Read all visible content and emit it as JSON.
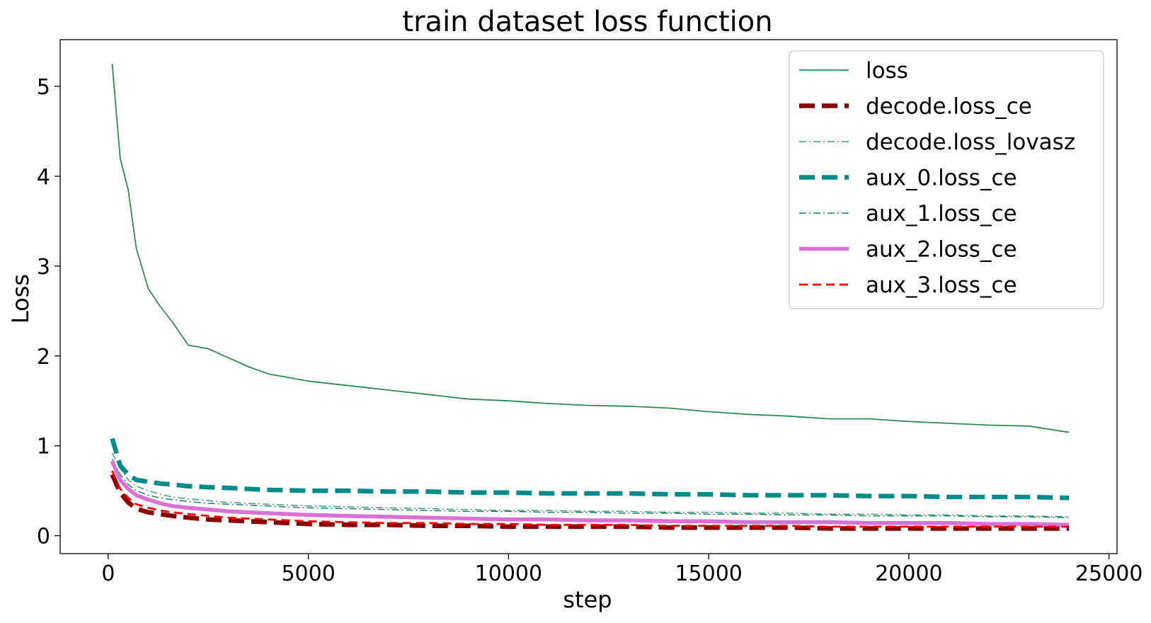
{
  "chart_data": {
    "type": "line",
    "title": "train dataset loss function",
    "xlabel": "step",
    "ylabel": "Loss",
    "xlim": [
      -1200,
      25200
    ],
    "ylim": [
      -0.2,
      5.52
    ],
    "xticks": [
      0,
      5000,
      10000,
      15000,
      20000,
      25000
    ],
    "yticks": [
      0,
      1,
      2,
      3,
      4,
      5
    ],
    "grid": false,
    "legend_position": "top-right",
    "series": [
      {
        "name": "loss",
        "color": "#2e8b57",
        "style": "solid-thin",
        "x": [
          100,
          300,
          500,
          700,
          1000,
          1300,
          1600,
          2000,
          2500,
          3000,
          3500,
          4000,
          5000,
          6000,
          7000,
          8000,
          9000,
          10000,
          11000,
          12000,
          13000,
          14000,
          15000,
          16000,
          17000,
          18000,
          19000,
          20000,
          21000,
          22000,
          23000,
          24000
        ],
        "values": [
          5.25,
          4.2,
          3.85,
          3.2,
          2.75,
          2.55,
          2.38,
          2.12,
          2.08,
          1.98,
          1.88,
          1.8,
          1.72,
          1.67,
          1.62,
          1.57,
          1.52,
          1.5,
          1.47,
          1.45,
          1.44,
          1.42,
          1.38,
          1.35,
          1.33,
          1.3,
          1.3,
          1.27,
          1.25,
          1.23,
          1.22,
          1.15
        ]
      },
      {
        "name": "decode.loss_ce",
        "color": "#8b0000",
        "style": "dashed-thick",
        "x": [
          100,
          300,
          500,
          700,
          1000,
          1300,
          1600,
          2000,
          2500,
          3000,
          3500,
          4000,
          5000,
          6000,
          7000,
          8000,
          9000,
          10000,
          11000,
          12000,
          13000,
          14000,
          15000,
          16000,
          17000,
          18000,
          19000,
          20000,
          21000,
          22000,
          23000,
          24000
        ],
        "values": [
          0.68,
          0.48,
          0.37,
          0.3,
          0.26,
          0.24,
          0.22,
          0.2,
          0.18,
          0.17,
          0.16,
          0.15,
          0.13,
          0.12,
          0.12,
          0.11,
          0.11,
          0.1,
          0.1,
          0.1,
          0.1,
          0.09,
          0.09,
          0.09,
          0.09,
          0.08,
          0.08,
          0.08,
          0.08,
          0.08,
          0.08,
          0.08
        ]
      },
      {
        "name": "decode.loss_lovasz",
        "color": "#3a9e7c",
        "style": "dashdot-thin",
        "x": [
          100,
          300,
          500,
          700,
          1000,
          1300,
          1600,
          2000,
          2500,
          3000,
          3500,
          4000,
          5000,
          6000,
          7000,
          8000,
          9000,
          10000,
          11000,
          12000,
          13000,
          14000,
          15000,
          16000,
          17000,
          18000,
          19000,
          20000,
          21000,
          22000,
          23000,
          24000
        ],
        "values": [
          0.92,
          0.75,
          0.62,
          0.55,
          0.5,
          0.46,
          0.43,
          0.41,
          0.39,
          0.37,
          0.36,
          0.35,
          0.33,
          0.32,
          0.31,
          0.3,
          0.29,
          0.28,
          0.28,
          0.27,
          0.27,
          0.26,
          0.26,
          0.25,
          0.25,
          0.24,
          0.24,
          0.23,
          0.23,
          0.22,
          0.22,
          0.21
        ]
      },
      {
        "name": "aux_0.loss_ce",
        "color": "#008b8b",
        "style": "dashed-thick",
        "x": [
          100,
          300,
          500,
          700,
          1000,
          1300,
          1600,
          2000,
          2500,
          3000,
          3500,
          4000,
          5000,
          6000,
          7000,
          8000,
          9000,
          10000,
          11000,
          12000,
          13000,
          14000,
          15000,
          16000,
          17000,
          18000,
          19000,
          20000,
          21000,
          22000,
          23000,
          24000
        ],
        "values": [
          1.08,
          0.78,
          0.68,
          0.62,
          0.6,
          0.58,
          0.57,
          0.55,
          0.54,
          0.53,
          0.52,
          0.51,
          0.5,
          0.5,
          0.49,
          0.49,
          0.48,
          0.48,
          0.47,
          0.47,
          0.47,
          0.46,
          0.46,
          0.45,
          0.45,
          0.45,
          0.44,
          0.44,
          0.43,
          0.43,
          0.43,
          0.42
        ]
      },
      {
        "name": "aux_1.loss_ce",
        "color": "#1f7f6f",
        "style": "dashdot-thin",
        "x": [
          100,
          300,
          500,
          700,
          1000,
          1300,
          1600,
          2000,
          2500,
          3000,
          3500,
          4000,
          5000,
          6000,
          7000,
          8000,
          9000,
          10000,
          11000,
          12000,
          13000,
          14000,
          15000,
          16000,
          17000,
          18000,
          19000,
          20000,
          21000,
          22000,
          23000,
          24000
        ],
        "values": [
          0.85,
          0.68,
          0.57,
          0.5,
          0.45,
          0.42,
          0.4,
          0.38,
          0.36,
          0.35,
          0.34,
          0.33,
          0.31,
          0.3,
          0.29,
          0.28,
          0.27,
          0.27,
          0.26,
          0.26,
          0.25,
          0.25,
          0.24,
          0.24,
          0.23,
          0.23,
          0.22,
          0.22,
          0.22,
          0.21,
          0.21,
          0.2
        ]
      },
      {
        "name": "aux_2.loss_ce",
        "color": "#da70d6",
        "style": "solid-thick",
        "x": [
          100,
          300,
          500,
          700,
          1000,
          1300,
          1600,
          2000,
          2500,
          3000,
          3500,
          4000,
          5000,
          6000,
          7000,
          8000,
          9000,
          10000,
          11000,
          12000,
          13000,
          14000,
          15000,
          16000,
          17000,
          18000,
          19000,
          20000,
          21000,
          22000,
          23000,
          24000
        ],
        "values": [
          0.83,
          0.62,
          0.52,
          0.45,
          0.4,
          0.36,
          0.33,
          0.31,
          0.29,
          0.27,
          0.26,
          0.25,
          0.23,
          0.22,
          0.21,
          0.2,
          0.19,
          0.18,
          0.18,
          0.17,
          0.17,
          0.16,
          0.16,
          0.15,
          0.15,
          0.15,
          0.14,
          0.14,
          0.14,
          0.13,
          0.13,
          0.12
        ]
      },
      {
        "name": "aux_3.loss_ce",
        "color": "#ff0000",
        "style": "dashed-thin",
        "x": [
          100,
          300,
          500,
          700,
          1000,
          1300,
          1600,
          2000,
          2500,
          3000,
          3500,
          4000,
          5000,
          6000,
          7000,
          8000,
          9000,
          10000,
          11000,
          12000,
          13000,
          14000,
          15000,
          16000,
          17000,
          18000,
          19000,
          20000,
          21000,
          22000,
          23000,
          24000
        ],
        "values": [
          0.72,
          0.52,
          0.42,
          0.35,
          0.31,
          0.28,
          0.26,
          0.24,
          0.22,
          0.2,
          0.19,
          0.18,
          0.16,
          0.15,
          0.14,
          0.14,
          0.13,
          0.13,
          0.12,
          0.12,
          0.12,
          0.11,
          0.11,
          0.11,
          0.11,
          0.1,
          0.1,
          0.1,
          0.1,
          0.1,
          0.1,
          0.1
        ]
      }
    ]
  }
}
